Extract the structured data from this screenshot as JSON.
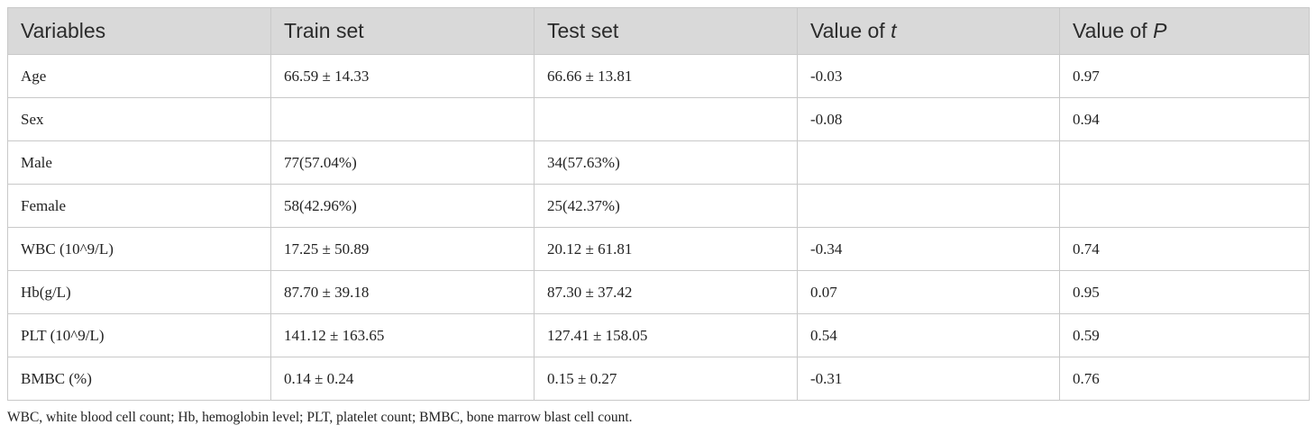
{
  "table": {
    "header": [
      "Variables",
      "Train set",
      "Test set",
      "Value of t",
      "Value of P"
    ],
    "rows": [
      [
        "Age",
        "66.59 ± 14.33",
        "66.66 ± 13.81",
        "-0.03",
        "0.97"
      ],
      [
        "Sex",
        null,
        null,
        "-0.08",
        "0.94"
      ],
      [
        "Male",
        "77(57.04%)",
        "34(57.63%)",
        null,
        null
      ],
      [
        "Female",
        "58(42.96%)",
        "25(42.37%)",
        null,
        null
      ],
      [
        "WBC (10^9/L)",
        "17.25 ± 50.89",
        "20.12 ± 61.81",
        "-0.34",
        "0.74"
      ],
      [
        "Hb(g/L)",
        "87.70 ± 39.18",
        "87.30 ± 37.42",
        "0.07",
        "0.95"
      ],
      [
        "PLT (10^9/L)",
        "141.12 ± 163.65",
        "127.41 ± 158.05",
        "0.54",
        "0.59"
      ],
      [
        "BMBC (%)",
        "0.14 ± 0.24",
        "0.15 ± 0.27",
        "-0.31",
        "0.76"
      ]
    ],
    "footnote": "WBC, white blood cell count; Hb, hemoglobin level; PLT, platelet count; BMBC, bone marrow blast cell count."
  }
}
